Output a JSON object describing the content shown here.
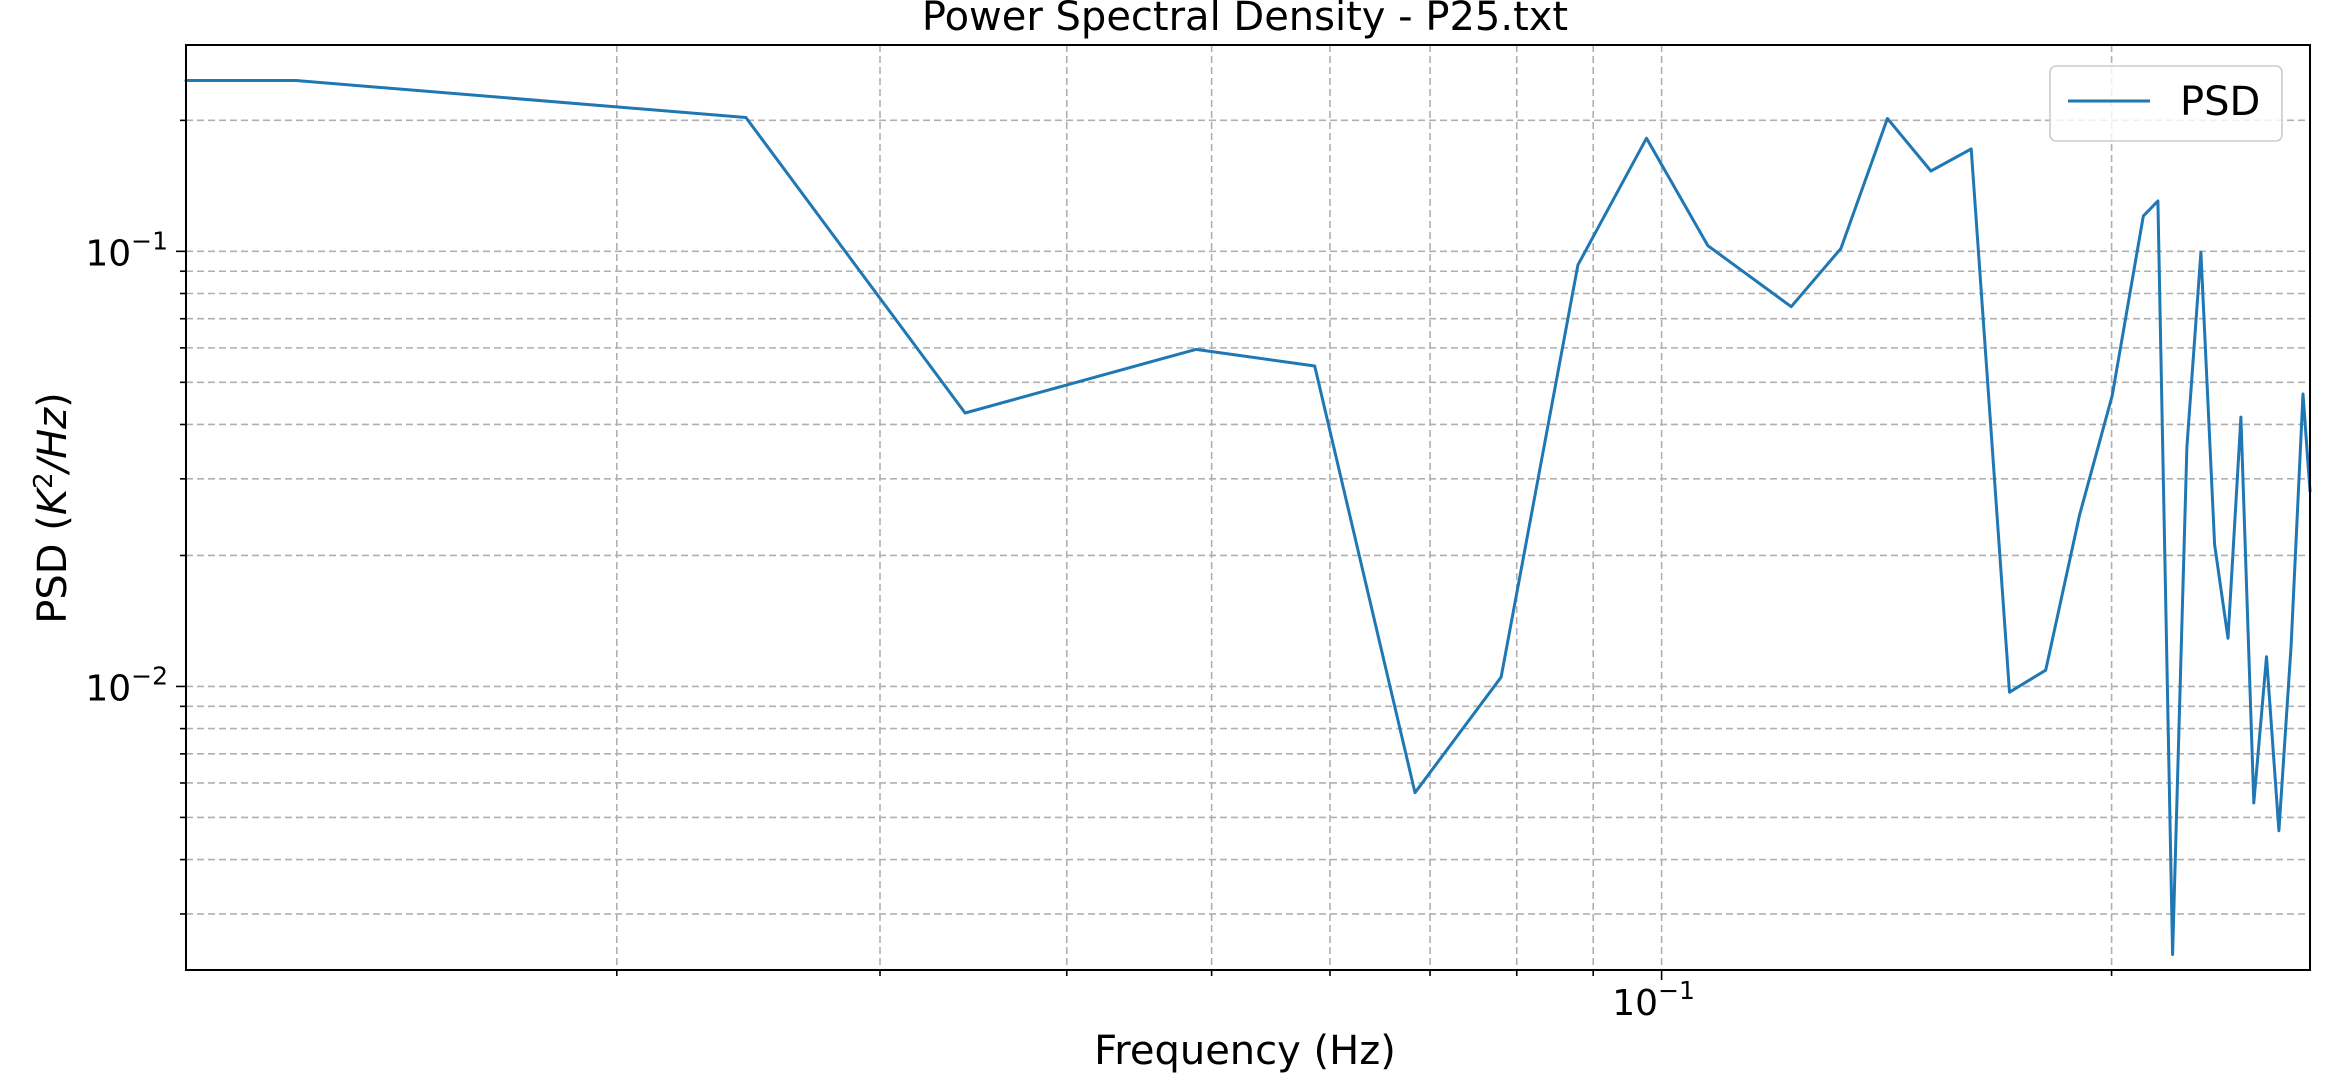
{
  "chart_data": {
    "type": "line",
    "title": "Power Spectral Density - P25.txt",
    "xlabel": "Frequency (Hz)",
    "ylabel_prefix": "PSD (",
    "ylabel_math": "K",
    "ylabel_sup": "2",
    "ylabel_math_rest": "/Hz",
    "ylabel_suffix": ")",
    "xscale": "log",
    "yscale": "log",
    "xlim": [
      0.0103,
      0.2715
    ],
    "ylim": [
      0.00223,
      0.298
    ],
    "grid": true,
    "grid_minor": true,
    "legend_position": "upper right",
    "x_ticks": [
      {
        "value": 0.1,
        "base": "10",
        "exp": "−1"
      }
    ],
    "y_ticks": [
      {
        "value": 0.1,
        "base": "10",
        "exp": "−1"
      },
      {
        "value": 0.01,
        "base": "10",
        "exp": "−2"
      }
    ],
    "series": [
      {
        "name": "PSD",
        "color": "#1f77b4",
        "x": [
          0.0103,
          0.0122,
          0.0244,
          0.0342,
          0.0488,
          0.0586,
          0.0684,
          0.0781,
          0.0879,
          0.0977,
          0.1074,
          0.1221,
          0.1318,
          0.1416,
          0.1514,
          0.1611,
          0.1709,
          0.1807,
          0.1904,
          0.2002,
          0.21,
          0.2148,
          0.2197,
          0.2246,
          0.2295,
          0.2344,
          0.2393,
          0.2441,
          0.249,
          0.2539,
          0.2588,
          0.2637,
          0.2686,
          0.2715
        ],
        "y": [
          0.247,
          0.247,
          0.203,
          0.0425,
          0.0595,
          0.0545,
          0.0057,
          0.0105,
          0.093,
          0.182,
          0.103,
          0.0746,
          0.1015,
          0.202,
          0.153,
          0.172,
          0.0097,
          0.0109,
          0.0248,
          0.0466,
          0.1205,
          0.1305,
          0.00242,
          0.0355,
          0.0995,
          0.0212,
          0.0129,
          0.0416,
          0.0054,
          0.0117,
          0.00466,
          0.0124,
          0.047,
          0.0281
        ]
      }
    ]
  }
}
